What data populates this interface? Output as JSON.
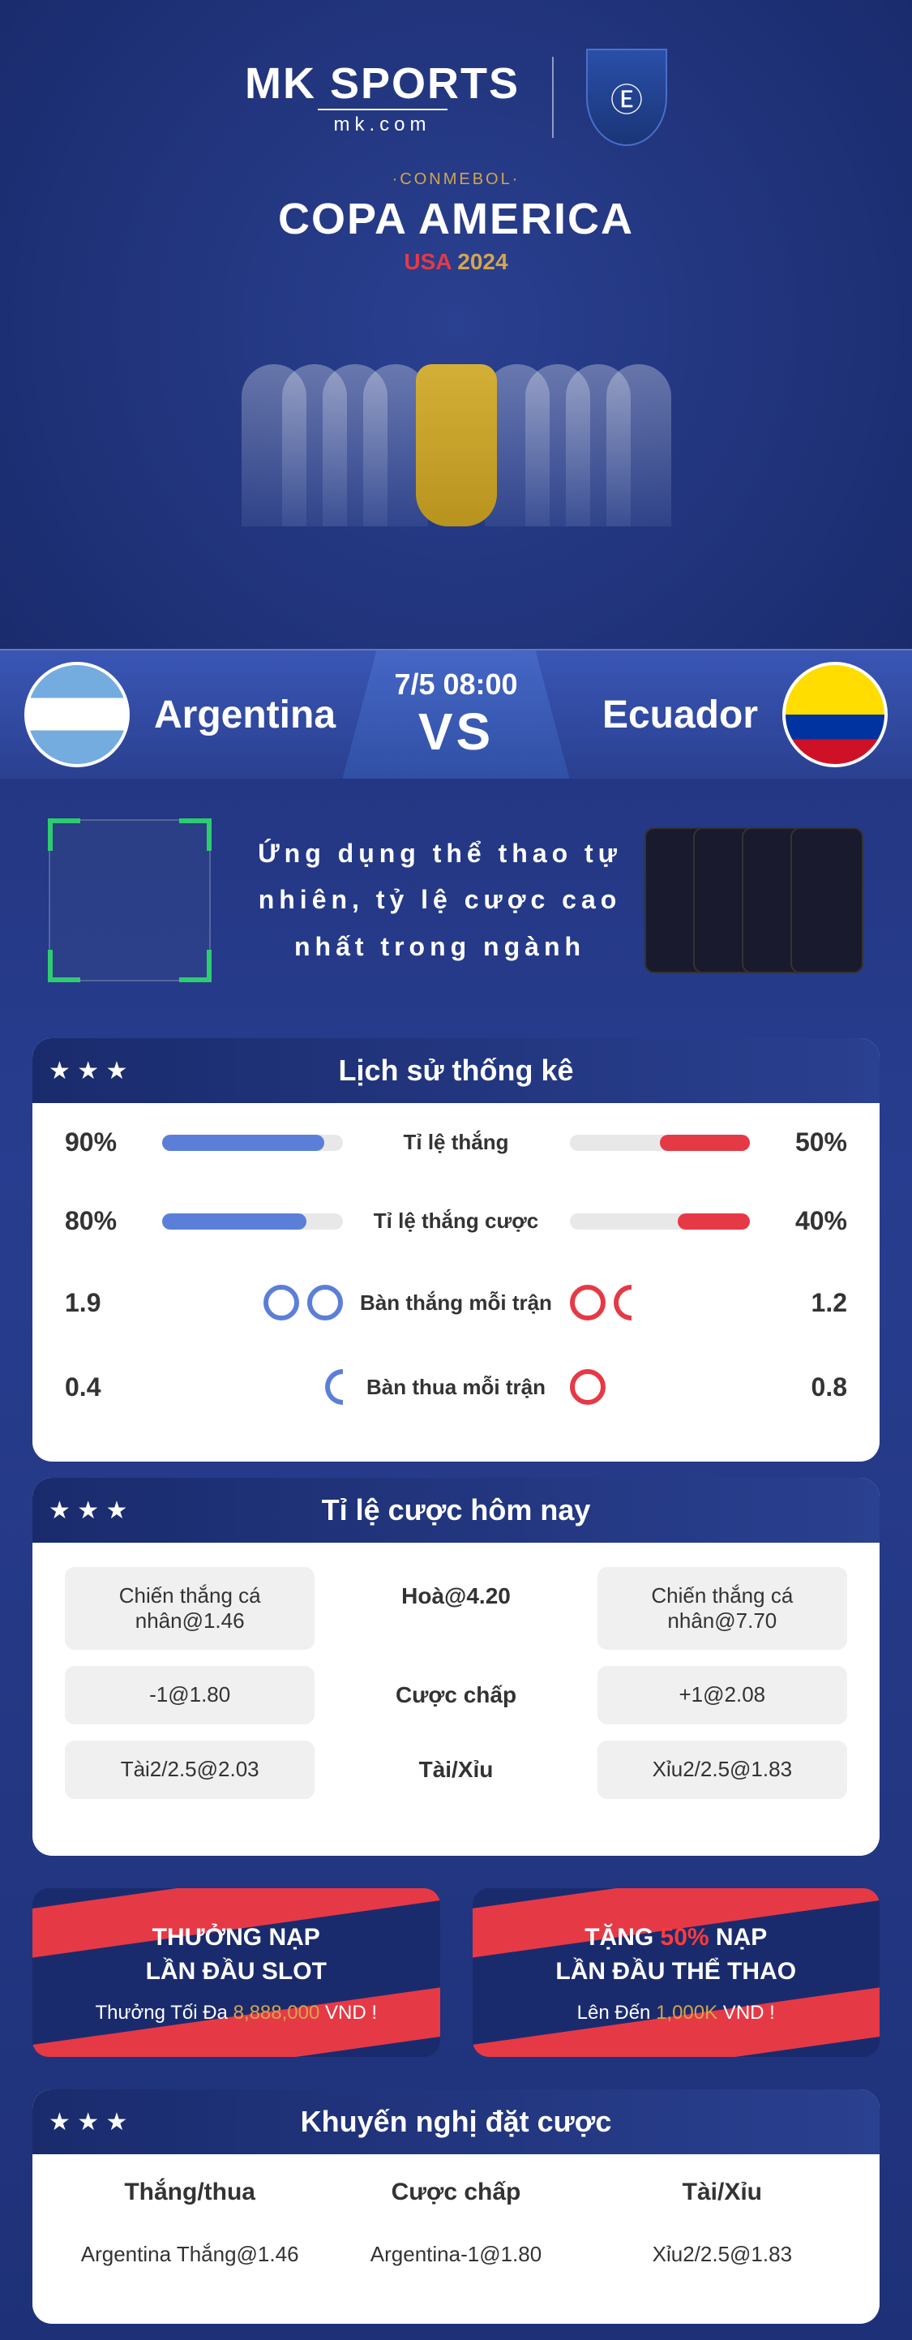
{
  "brand": {
    "logo_main": "MK SPORTS",
    "logo_sub": "mk.com",
    "partner_symbol": "Ⓔ"
  },
  "tournament": {
    "org": "·CONMEBOL·",
    "title": "COPA AMERICA",
    "loc": "USA",
    "year": "2024"
  },
  "match": {
    "team1": "Argentina",
    "team2": "Ecuador",
    "datetime": "7/5 08:00",
    "vs": "VS"
  },
  "promo": {
    "text": "Ứng dụng thể thao tự nhiên, tỷ lệ cược cao nhất trong ngành"
  },
  "stats": {
    "title": "Lịch sử thống kê",
    "rows": [
      {
        "left_val": "90%",
        "left_pct": 90,
        "label": "Tỉ lệ thắng",
        "right_val": "50%",
        "right_pct": 50
      },
      {
        "left_val": "80%",
        "left_pct": 80,
        "label": "Tỉ lệ thắng cược",
        "right_val": "40%",
        "right_pct": 40
      }
    ],
    "goal_rows": [
      {
        "left_val": "1.9",
        "left_balls": 2,
        "label": "Bàn thắng mỗi trận",
        "right_balls": 1.5,
        "right_val": "1.2"
      },
      {
        "left_val": "0.4",
        "left_balls": 0.5,
        "label": "Bàn thua mỗi trận",
        "right_balls": 1,
        "right_val": "0.8"
      }
    ]
  },
  "odds": {
    "title": "Tỉ lệ cược hôm nay",
    "grid": [
      [
        "Chiến thắng cá nhân@1.46",
        "Hoà@4.20",
        "Chiến thắng cá nhân@7.70"
      ],
      [
        "-1@1.80",
        "Cược chấp",
        "+1@2.08"
      ],
      [
        "Tài2/2.5@2.03",
        "Tài/Xỉu",
        "Xỉu2/2.5@1.83"
      ]
    ]
  },
  "bonus": [
    {
      "line1": "THƯỞNG NẠP",
      "line2": "LẦN ĐẦU SLOT",
      "sub_pre": "Thưởng Tối Đa ",
      "sub_val": "8,888,000",
      "sub_suf": " VND !"
    },
    {
      "line1_pre": "TẶNG ",
      "line1_red": "50%",
      "line1_suf": " NẠP",
      "line2": "LẦN ĐẦU THỂ THAO",
      "sub_pre": "Lên Đến ",
      "sub_val": "1,000K",
      "sub_suf": " VND !"
    }
  ],
  "recommend": {
    "title": "Khuyến nghị đặt cược",
    "headers": [
      "Thắng/thua",
      "Cược chấp",
      "Tài/Xỉu"
    ],
    "values": [
      "Argentina Thắng@1.46",
      "Argentina-1@1.80",
      "Xỉu2/2.5@1.83"
    ]
  },
  "colors": {
    "blue": "#5b7fd9",
    "red": "#e63946",
    "gold": "#d4a54d",
    "bg_dark": "#1a2b6d"
  }
}
